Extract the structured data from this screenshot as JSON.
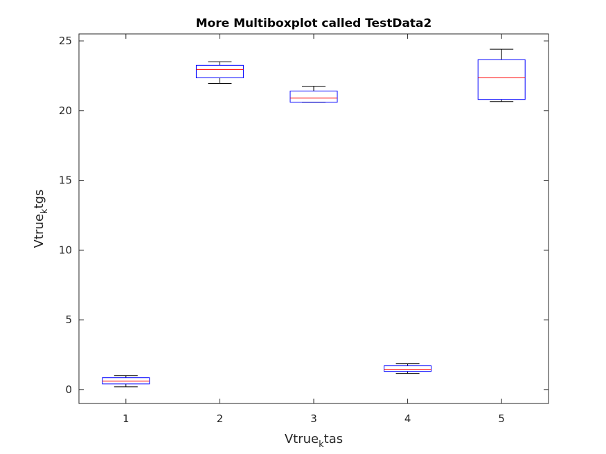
{
  "chart_data": {
    "type": "boxplot",
    "title": "More Multiboxplot called TestData2",
    "xlabel": {
      "main": "Vtrue",
      "sub": "k",
      "rest": "tas"
    },
    "ylabel": {
      "main": "Vtrue",
      "sub": "k",
      "rest": "tgs"
    },
    "categories": [
      "1",
      "2",
      "3",
      "4",
      "5"
    ],
    "xlim": [
      0.5,
      5.5
    ],
    "ylim": [
      -1,
      25.5
    ],
    "yticks": [
      0,
      5,
      10,
      15,
      20,
      25
    ],
    "grid": false,
    "boxes": [
      {
        "category": "1",
        "whisker_low": 0.2,
        "q1": 0.4,
        "median": 0.6,
        "q3": 0.85,
        "whisker_high": 1.0
      },
      {
        "category": "2",
        "whisker_low": 21.95,
        "q1": 22.35,
        "median": 22.95,
        "q3": 23.25,
        "whisker_high": 23.5
      },
      {
        "category": "3",
        "whisker_low": 20.6,
        "q1": 20.6,
        "median": 20.9,
        "q3": 21.4,
        "whisker_high": 21.75
      },
      {
        "category": "4",
        "whisker_low": 1.15,
        "q1": 1.3,
        "median": 1.45,
        "q3": 1.7,
        "whisker_high": 1.85
      },
      {
        "category": "5",
        "whisker_low": 20.65,
        "q1": 20.8,
        "median": 22.35,
        "q3": 23.65,
        "whisker_high": 24.4
      }
    ],
    "colors": {
      "box": "#0000ff",
      "median": "#ff0000",
      "whisker": "#000000",
      "axis": "#262626"
    }
  }
}
